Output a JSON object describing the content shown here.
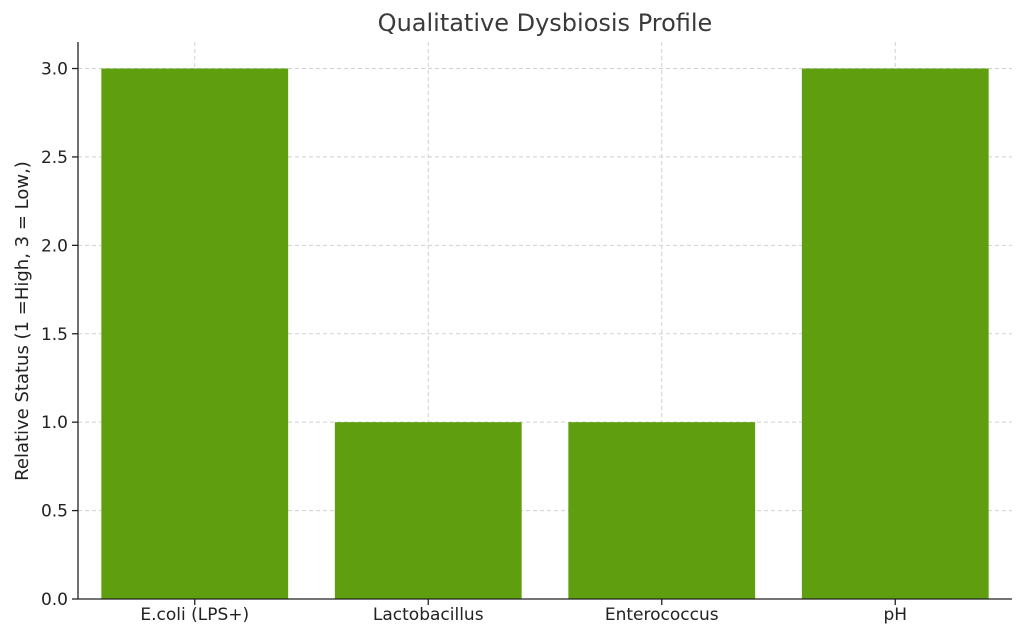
{
  "chart_data": {
    "type": "bar",
    "title": "Qualitative Dysbiosis Profile",
    "xlabel": "",
    "ylabel": "Relative Status (1 =High, 3 =  Low,)",
    "categories": [
      "E.coli (LPS+)",
      "Lactobacillus",
      "Enterococcus",
      "pH"
    ],
    "values": [
      3,
      1,
      1,
      3
    ],
    "ylim": [
      0,
      3.15
    ],
    "yticks": [
      0.0,
      0.5,
      1.0,
      1.5,
      2.0,
      2.5,
      3.0
    ],
    "ytick_labels": [
      "0.0",
      "0.5",
      "1.0",
      "1.5",
      "2.0",
      "2.5",
      "3.0"
    ],
    "grid": true,
    "bar_color": "#5f9e0f",
    "legend": "none"
  }
}
